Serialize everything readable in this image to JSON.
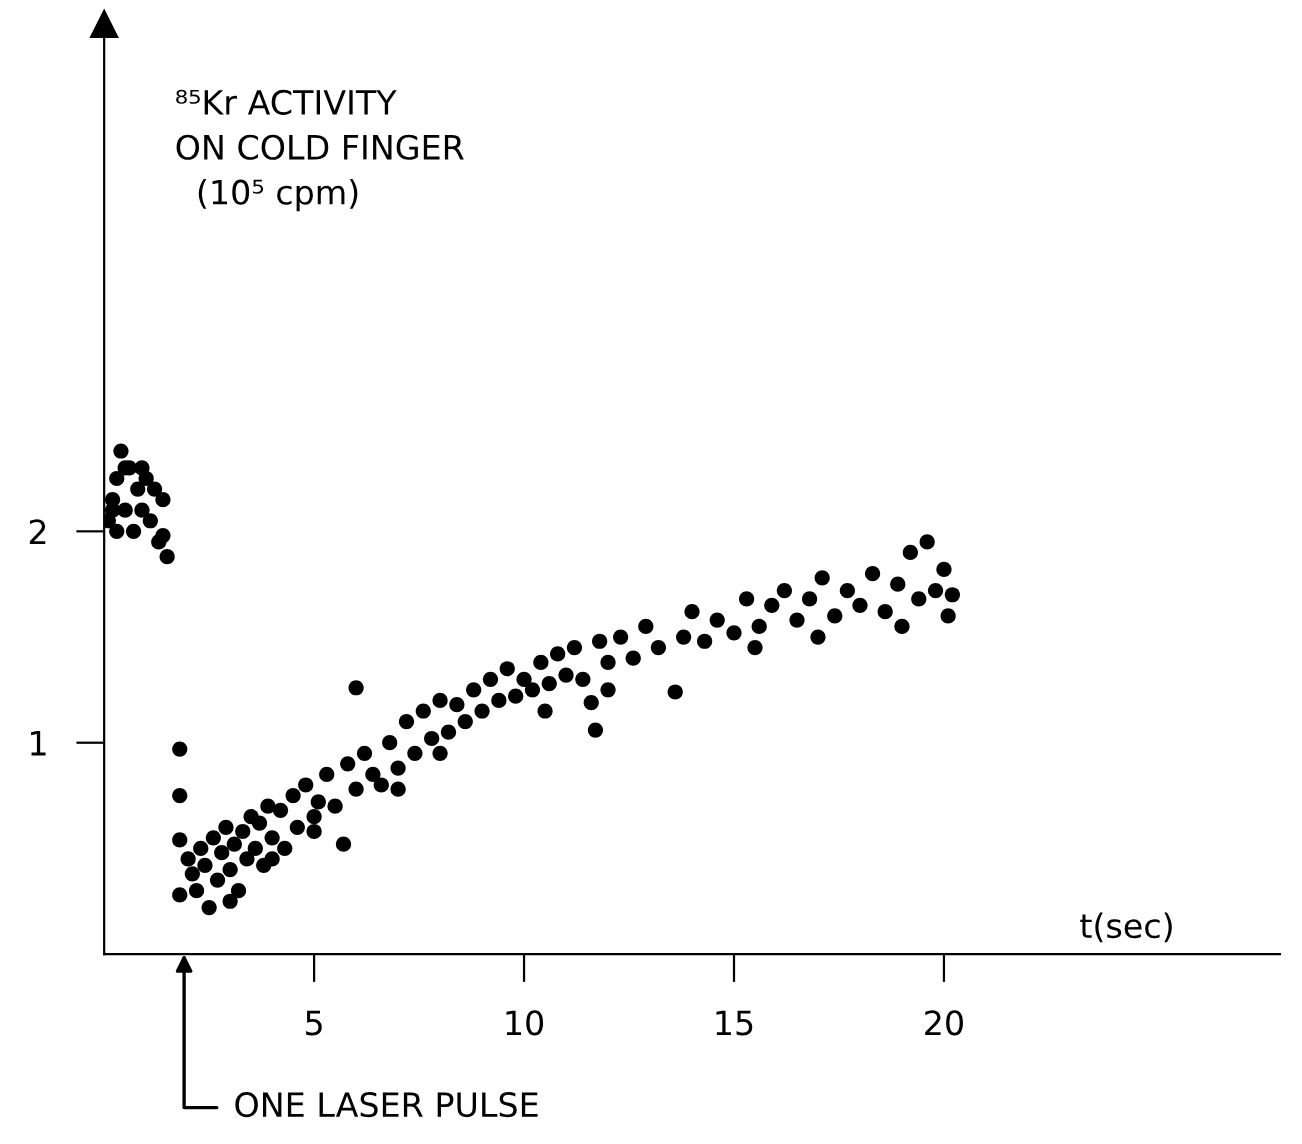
{
  "chart_data": {
    "type": "scatter",
    "ylabel": "⁸⁵Kr ACTIVITY\nON COLD FINGER\n  (10⁵ cpm)",
    "xlabel": "t(sec)",
    "x": [
      0.1,
      0.2,
      0.3,
      0.4,
      0.5,
      0.6,
      0.7,
      0.8,
      0.9,
      1.0,
      1.1,
      1.2,
      1.3,
      1.4,
      1.5,
      0.3,
      0.5,
      0.9,
      1.4,
      0.2,
      1.8,
      1.8,
      1.8,
      1.8,
      2.0,
      2.1,
      2.2,
      2.3,
      2.4,
      2.5,
      2.6,
      2.7,
      2.8,
      2.9,
      3.0,
      3.1,
      3.2,
      3.3,
      3.4,
      3.5,
      3.6,
      3.7,
      3.8,
      3.9,
      4.0,
      4.2,
      4.3,
      4.5,
      4.6,
      4.8,
      5.0,
      5.1,
      5.3,
      5.5,
      5.7,
      5.8,
      6.0,
      6.0,
      6.2,
      6.4,
      6.6,
      6.8,
      7.0,
      7.2,
      7.4,
      7.6,
      7.8,
      8.0,
      8.2,
      8.4,
      8.6,
      8.8,
      9.0,
      9.2,
      9.4,
      9.6,
      9.8,
      10.0,
      10.2,
      10.4,
      10.6,
      10.8,
      11.0,
      11.2,
      11.4,
      11.6,
      11.7,
      11.8,
      12.0,
      12.3,
      12.6,
      12.9,
      13.2,
      13.6,
      13.8,
      14.0,
      14.3,
      14.6,
      15.0,
      15.3,
      15.6,
      15.9,
      16.2,
      16.5,
      16.8,
      17.1,
      17.4,
      17.7,
      18.0,
      18.3,
      18.6,
      18.9,
      19.2,
      19.4,
      19.6,
      19.8,
      20.0,
      20.1,
      20.2,
      19.0,
      17.0,
      15.5,
      12.0,
      10.5,
      8.0,
      7.0,
      5.0,
      4.0,
      3.0
    ],
    "values": [
      2.05,
      2.15,
      2.25,
      2.38,
      2.1,
      2.3,
      2.0,
      2.2,
      2.1,
      2.25,
      2.05,
      2.2,
      1.95,
      2.15,
      1.88,
      2.0,
      2.3,
      2.3,
      1.98,
      2.1,
      0.97,
      0.75,
      0.54,
      0.28,
      0.45,
      0.38,
      0.3,
      0.5,
      0.42,
      0.22,
      0.55,
      0.35,
      0.48,
      0.6,
      0.4,
      0.52,
      0.3,
      0.58,
      0.45,
      0.65,
      0.5,
      0.62,
      0.42,
      0.7,
      0.55,
      0.68,
      0.5,
      0.75,
      0.6,
      0.8,
      0.65,
      0.72,
      0.85,
      0.7,
      0.52,
      0.9,
      1.26,
      0.78,
      0.95,
      0.85,
      0.8,
      1.0,
      0.88,
      1.1,
      0.95,
      1.15,
      1.02,
      1.2,
      1.05,
      1.18,
      1.1,
      1.25,
      1.15,
      1.3,
      1.2,
      1.35,
      1.22,
      1.3,
      1.25,
      1.38,
      1.28,
      1.42,
      1.32,
      1.45,
      1.3,
      1.19,
      1.06,
      1.48,
      1.38,
      1.5,
      1.4,
      1.55,
      1.45,
      1.24,
      1.5,
      1.62,
      1.48,
      1.58,
      1.52,
      1.68,
      1.55,
      1.65,
      1.72,
      1.58,
      1.68,
      1.78,
      1.6,
      1.72,
      1.65,
      1.8,
      1.62,
      1.75,
      1.9,
      1.68,
      1.95,
      1.72,
      1.82,
      1.6,
      1.7,
      1.55,
      1.5,
      1.45,
      1.25,
      1.15,
      0.95,
      0.78,
      0.58,
      0.45,
      0.25
    ],
    "color": "#000000",
    "marker": "circle",
    "xlim": [
      0,
      28
    ],
    "ylim": [
      0,
      4.4
    ],
    "xticks": [
      5,
      10,
      15,
      20
    ],
    "yticks": [
      1,
      2
    ],
    "annotations": [
      "ONE LASER PULSE"
    ]
  }
}
